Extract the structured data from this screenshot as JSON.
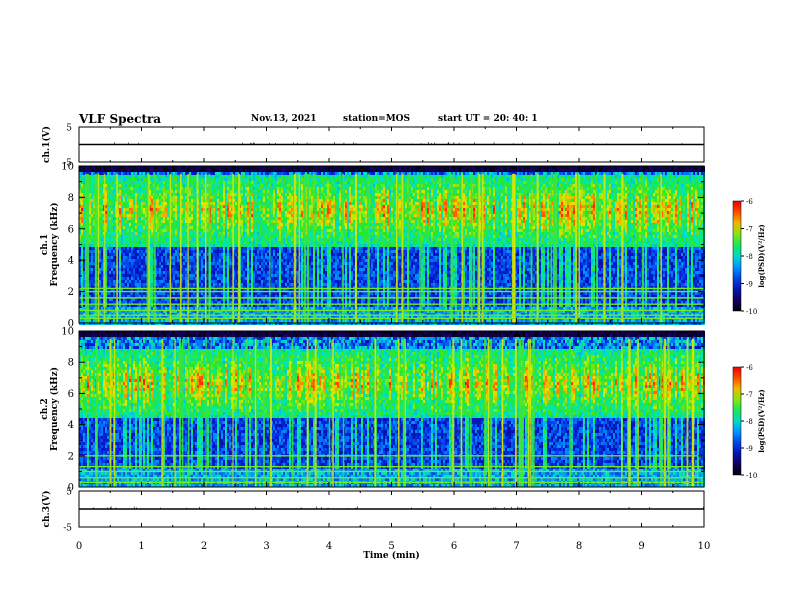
{
  "header": {
    "title": "VLF Spectra",
    "date": "Nov.13, 2021",
    "station": "station=MOS",
    "start": "start UT =  20: 40: 1"
  },
  "chart_data": [
    {
      "type": "line",
      "panel": "ch1-waveform",
      "ylabel": "ch.1(V)",
      "yticks": [
        "5",
        "-5"
      ],
      "ylim": [
        -5,
        5
      ],
      "xlim": [
        0,
        10
      ],
      "series": [
        {
          "values_approx": "near-constant trace at about 0 V"
        }
      ]
    },
    {
      "type": "heatmap",
      "panel": "ch1-spectrogram",
      "ylabel": "ch.1\nFrequency (kHz)",
      "ylim": [
        0,
        10
      ],
      "yticks": [
        "0",
        "2",
        "4",
        "6",
        "8",
        "10"
      ],
      "xlim": [
        0,
        10
      ],
      "colorbar": {
        "label": "log(PSD)(V²/Hz)",
        "ticks": [
          "-6",
          "-7",
          "-8",
          "-9",
          "-10"
        ],
        "range": [
          -10,
          -6
        ]
      },
      "features": {
        "intense_band_khz": [
          5,
          9.5
        ],
        "quiet_band_khz": [
          1.2,
          5
        ],
        "line_emissions_khz": [
          0.3,
          0.5,
          0.8,
          1.2,
          1.6,
          2.0,
          2.2
        ]
      }
    },
    {
      "type": "heatmap",
      "panel": "ch2-spectrogram",
      "ylabel": "ch.2\nFrequency (kHz)",
      "ylim": [
        0,
        10
      ],
      "yticks": [
        "0",
        "2",
        "4",
        "6",
        "8",
        "10"
      ],
      "xlim": [
        0,
        10
      ],
      "colorbar": {
        "label": "log(PSD)(V²/Hz)",
        "ticks": [
          "-6",
          "-7",
          "-8",
          "-9",
          "-10"
        ],
        "range": [
          -10,
          -6
        ]
      },
      "features": {
        "intense_band_khz": [
          4.5,
          9
        ],
        "quiet_band_khz": [
          1.2,
          4.5
        ],
        "line_emissions_khz": [
          0.3,
          0.6,
          1.0,
          1.3,
          2.0
        ]
      }
    },
    {
      "type": "line",
      "panel": "ch3-waveform",
      "ylabel": "ch.3(V)",
      "yticks": [
        "5",
        "-5"
      ],
      "ylim": [
        -5,
        5
      ],
      "xlim": [
        0,
        10
      ],
      "xlabel": "Time (min)",
      "xticks": [
        "0",
        "1",
        "2",
        "3",
        "4",
        "5",
        "6",
        "7",
        "8",
        "9",
        "10"
      ],
      "series": [
        {
          "values_approx": "near-constant trace at about 0 V"
        }
      ]
    }
  ]
}
